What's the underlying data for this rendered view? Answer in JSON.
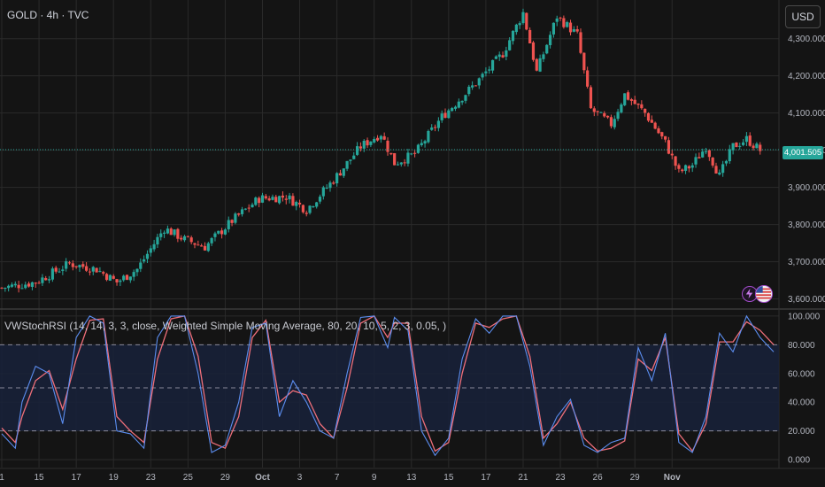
{
  "header": {
    "symbol": "GOLD · 4h · TVC",
    "currency": "USD"
  },
  "last_price_label": "4,001.505",
  "colors": {
    "background": "#141414",
    "grid": "#2a2a2a",
    "up": "#26a69a",
    "down": "#ef5350",
    "k_line": "#5b8def",
    "d_line": "#ef6f7a",
    "band": "#18213a",
    "price_line": "#26a69a"
  },
  "icons": [
    "lightning-icon",
    "us-flag-icon"
  ],
  "chart_data": [
    {
      "type": "candlestick",
      "title": "GOLD · 4h · TVC",
      "y_ticks": [
        "3,600.000",
        "3,700.000",
        "3,800.000",
        "3,900.000",
        "4,000.000",
        "4,100.000",
        "4,200.000",
        "4,300.000"
      ],
      "y_tick_values": [
        3600,
        3700,
        3800,
        3900,
        4000,
        4100,
        4200,
        4300
      ],
      "ylim": [
        3580,
        4385
      ],
      "last_price": 4001.505,
      "x_ticks": [
        "1",
        "15",
        "17",
        "19",
        "23",
        "25",
        "29",
        "Oct",
        "3",
        "7",
        "9",
        "13",
        "15",
        "17",
        "21",
        "23",
        "26",
        "29",
        "Nov"
      ],
      "x_tick_index": [
        0,
        5.5,
        11,
        16.5,
        22,
        27.5,
        33,
        38.5,
        44,
        49.5,
        55,
        60.5,
        66,
        71.5,
        77,
        82.5,
        88,
        93.5,
        99
      ],
      "close_path": [
        [
          0,
          3630
        ],
        [
          5,
          3645
        ],
        [
          10,
          3695
        ],
        [
          14,
          3680
        ],
        [
          17,
          3645
        ],
        [
          20,
          3680
        ],
        [
          24,
          3790
        ],
        [
          27,
          3760
        ],
        [
          30,
          3740
        ],
        [
          34,
          3810
        ],
        [
          38,
          3870
        ],
        [
          42,
          3875
        ],
        [
          45,
          3840
        ],
        [
          49,
          3920
        ],
        [
          53,
          4010
        ],
        [
          56,
          4045
        ],
        [
          58,
          3965
        ],
        [
          61,
          3990
        ],
        [
          65,
          4090
        ],
        [
          70,
          4180
        ],
        [
          74,
          4260
        ],
        [
          77,
          4370
        ],
        [
          79,
          4210
        ],
        [
          82,
          4360
        ],
        [
          85,
          4310
        ],
        [
          87,
          4110
        ],
        [
          90,
          4070
        ],
        [
          92,
          4150
        ],
        [
          95,
          4100
        ],
        [
          98,
          4020
        ],
        [
          100,
          3940
        ],
        [
          102,
          3960
        ],
        [
          104,
          4010
        ],
        [
          106,
          3930
        ],
        [
          108,
          4010
        ],
        [
          110,
          4030
        ],
        [
          112,
          4000
        ]
      ]
    },
    {
      "type": "line",
      "title": "VWStochRSI (14, 14, 3, 3, close, Weighted Simple Moving Average, 80, 20, 10, 5, 2, 3, 0.05, )",
      "y_ticks": [
        "100.000",
        "80.000",
        "60.000",
        "40.000",
        "20.000",
        "0.000"
      ],
      "y_tick_values": [
        100,
        80,
        60,
        40,
        20,
        0
      ],
      "ylim": [
        -3,
        103
      ],
      "levels": [
        80,
        50,
        20
      ],
      "k_path": [
        [
          0,
          18
        ],
        [
          2,
          8
        ],
        [
          3,
          40
        ],
        [
          5,
          65
        ],
        [
          7,
          60
        ],
        [
          9,
          25
        ],
        [
          11,
          85
        ],
        [
          13,
          100
        ],
        [
          15,
          95
        ],
        [
          17,
          20
        ],
        [
          19,
          18
        ],
        [
          21,
          8
        ],
        [
          23,
          85
        ],
        [
          25,
          100
        ],
        [
          27,
          100
        ],
        [
          29,
          60
        ],
        [
          31,
          5
        ],
        [
          33,
          10
        ],
        [
          35,
          40
        ],
        [
          37,
          92
        ],
        [
          39,
          95
        ],
        [
          41,
          30
        ],
        [
          43,
          55
        ],
        [
          45,
          40
        ],
        [
          47,
          20
        ],
        [
          49,
          15
        ],
        [
          51,
          60
        ],
        [
          53,
          99
        ],
        [
          55,
          100
        ],
        [
          57,
          78
        ],
        [
          58,
          99
        ],
        [
          60,
          90
        ],
        [
          62,
          20
        ],
        [
          64,
          3
        ],
        [
          66,
          15
        ],
        [
          68,
          70
        ],
        [
          70,
          98
        ],
        [
          72,
          88
        ],
        [
          74,
          100
        ],
        [
          76,
          100
        ],
        [
          78,
          65
        ],
        [
          80,
          10
        ],
        [
          82,
          30
        ],
        [
          84,
          42
        ],
        [
          86,
          10
        ],
        [
          88,
          5
        ],
        [
          90,
          12
        ],
        [
          92,
          15
        ],
        [
          94,
          78
        ],
        [
          96,
          55
        ],
        [
          98,
          88
        ],
        [
          100,
          12
        ],
        [
          102,
          5
        ],
        [
          104,
          30
        ],
        [
          106,
          88
        ],
        [
          108,
          75
        ],
        [
          110,
          100
        ],
        [
          112,
          85
        ],
        [
          114,
          75
        ]
      ],
      "d_path": [
        [
          0,
          22
        ],
        [
          2,
          12
        ],
        [
          3,
          30
        ],
        [
          5,
          55
        ],
        [
          7,
          62
        ],
        [
          9,
          35
        ],
        [
          11,
          70
        ],
        [
          13,
          97
        ],
        [
          15,
          98
        ],
        [
          17,
          30
        ],
        [
          19,
          20
        ],
        [
          21,
          12
        ],
        [
          23,
          70
        ],
        [
          25,
          98
        ],
        [
          27,
          100
        ],
        [
          29,
          72
        ],
        [
          31,
          12
        ],
        [
          33,
          8
        ],
        [
          35,
          30
        ],
        [
          37,
          85
        ],
        [
          39,
          97
        ],
        [
          41,
          40
        ],
        [
          43,
          48
        ],
        [
          45,
          45
        ],
        [
          47,
          25
        ],
        [
          49,
          15
        ],
        [
          51,
          50
        ],
        [
          53,
          95
        ],
        [
          55,
          100
        ],
        [
          57,
          85
        ],
        [
          58,
          95
        ],
        [
          60,
          95
        ],
        [
          62,
          30
        ],
        [
          64,
          6
        ],
        [
          66,
          12
        ],
        [
          68,
          60
        ],
        [
          70,
          95
        ],
        [
          72,
          92
        ],
        [
          74,
          98
        ],
        [
          76,
          100
        ],
        [
          78,
          72
        ],
        [
          80,
          15
        ],
        [
          82,
          25
        ],
        [
          84,
          40
        ],
        [
          86,
          15
        ],
        [
          88,
          6
        ],
        [
          90,
          8
        ],
        [
          92,
          13
        ],
        [
          94,
          70
        ],
        [
          96,
          62
        ],
        [
          98,
          85
        ],
        [
          100,
          18
        ],
        [
          102,
          6
        ],
        [
          104,
          25
        ],
        [
          106,
          82
        ],
        [
          108,
          82
        ],
        [
          110,
          96
        ],
        [
          112,
          90
        ],
        [
          114,
          80
        ]
      ]
    }
  ]
}
